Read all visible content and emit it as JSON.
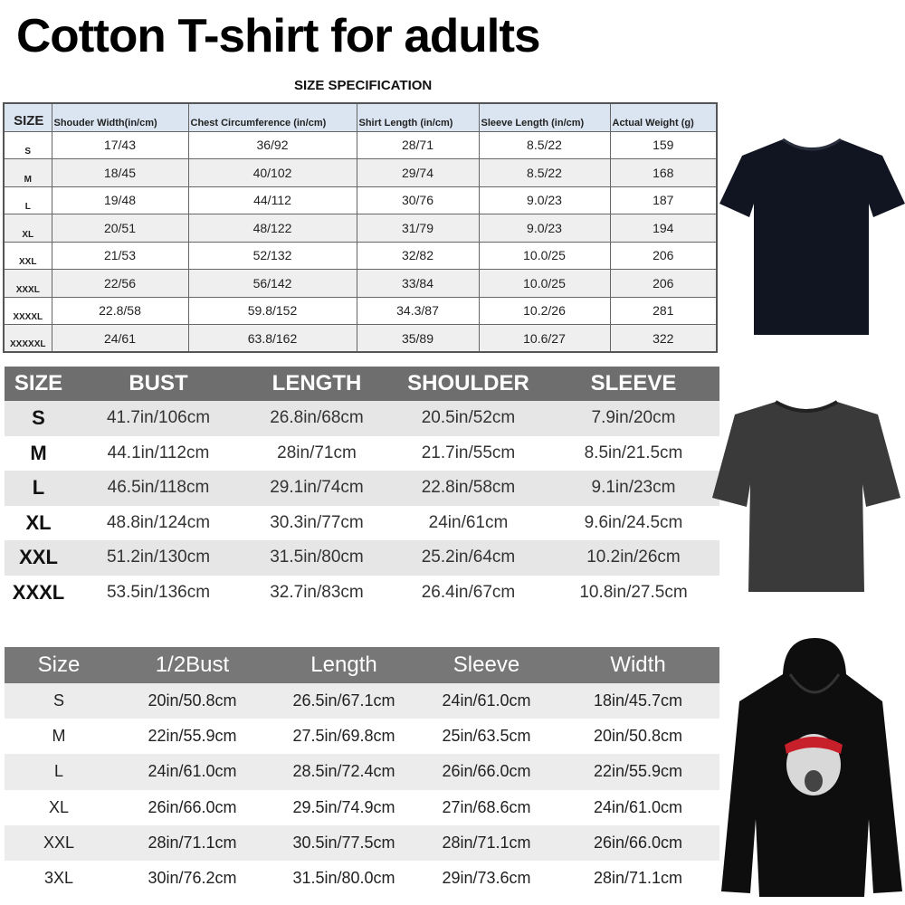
{
  "title": "Cotton T-shirt for adults",
  "spec_title": "SIZE SPECIFICATION",
  "table1": {
    "headers": [
      "SIZE",
      "Shouder Width(in/cm)",
      "Chest Circumference (in/cm)",
      "Shirt Length (in/cm)",
      "Sleeve Length (in/cm)",
      "Actual Weight (g)"
    ],
    "rows": [
      [
        "S",
        "17/43",
        "36/92",
        "28/71",
        "8.5/22",
        "159"
      ],
      [
        "M",
        "18/45",
        "40/102",
        "29/74",
        "8.5/22",
        "168"
      ],
      [
        "L",
        "19/48",
        "44/112",
        "30/76",
        "9.0/23",
        "187"
      ],
      [
        "XL",
        "20/51",
        "48/122",
        "31/79",
        "9.0/23",
        "194"
      ],
      [
        "XXL",
        "21/53",
        "52/132",
        "32/82",
        "10.0/25",
        "206"
      ],
      [
        "XXXL",
        "22/56",
        "56/142",
        "33/84",
        "10.0/25",
        "206"
      ],
      [
        "XXXXL",
        "22.8/58",
        "59.8/152",
        "34.3/87",
        "10.2/26",
        "281"
      ],
      [
        "XXXXXL",
        "24/61",
        "63.8/162",
        "35/89",
        "10.6/27",
        "322"
      ]
    ]
  },
  "table2": {
    "headers": [
      "SIZE",
      "BUST",
      "LENGTH",
      "SHOULDER",
      "SLEEVE"
    ],
    "rows": [
      [
        "S",
        "41.7in/106cm",
        "26.8in/68cm",
        "20.5in/52cm",
        "7.9in/20cm"
      ],
      [
        "M",
        "44.1in/112cm",
        "28in/71cm",
        "21.7in/55cm",
        "8.5in/21.5cm"
      ],
      [
        "L",
        "46.5in/118cm",
        "29.1in/74cm",
        "22.8in/58cm",
        "9.1in/23cm"
      ],
      [
        "XL",
        "48.8in/124cm",
        "30.3in/77cm",
        "24in/61cm",
        "9.6in/24.5cm"
      ],
      [
        "XXL",
        "51.2in/130cm",
        "31.5in/80cm",
        "25.2in/64cm",
        "10.2in/26cm"
      ],
      [
        "XXXL",
        "53.5in/136cm",
        "32.7in/83cm",
        "26.4in/67cm",
        "10.8in/27.5cm"
      ]
    ]
  },
  "table3": {
    "headers": [
      "Size",
      "1/2Bust",
      "Length",
      "Sleeve",
      "Width"
    ],
    "rows": [
      [
        "S",
        "20in/50.8cm",
        "26.5in/67.1cm",
        "24in/61.0cm",
        "18in/45.7cm"
      ],
      [
        "M",
        "22in/55.9cm",
        "27.5in/69.8cm",
        "25in/63.5cm",
        "20in/50.8cm"
      ],
      [
        "L",
        "24in/61.0cm",
        "28.5in/72.4cm",
        "26in/66.0cm",
        "22in/55.9cm"
      ],
      [
        "XL",
        "26in/66.0cm",
        "29.5in/74.9cm",
        "27in/68.6cm",
        "24in/61.0cm"
      ],
      [
        "XXL",
        "28in/71.1cm",
        "30.5in/77.5cm",
        "28in/71.1cm",
        "26in/66.0cm"
      ],
      [
        "3XL",
        "30in/76.2cm",
        "31.5in/80.0cm",
        "29in/73.6cm",
        "28in/71.1cm"
      ]
    ]
  },
  "colors": {
    "table1_header": "#dbe5f1",
    "table2_header": "#6e6e6e",
    "table3_header": "#777777",
    "tshirt": "#111522",
    "washed_tee": "#3a3a3a",
    "hoodie": "#0e0e0e",
    "bandana": "#c8202a"
  }
}
